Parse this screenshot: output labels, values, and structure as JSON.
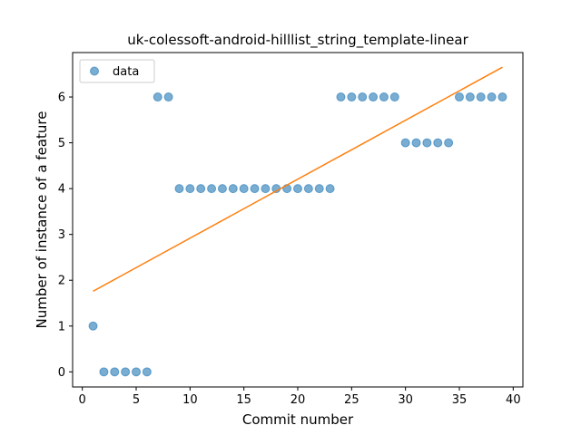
{
  "chart_data": {
    "type": "scatter",
    "title": "uk-colessoft-android-hilllist_string_template-linear",
    "xlabel": "Commit number",
    "ylabel": "Number of instance of a feature",
    "xlim": [
      -0.9,
      40.9
    ],
    "ylim": [
      -0.33,
      6.97
    ],
    "xticks": [
      0,
      5,
      10,
      15,
      20,
      25,
      30,
      35,
      40
    ],
    "yticks": [
      0,
      1,
      2,
      3,
      4,
      5,
      6
    ],
    "grid": false,
    "legend": {
      "placement": "top-left",
      "entries": [
        "data"
      ]
    },
    "series": [
      {
        "name": "data",
        "kind": "scatter",
        "color": "#1f77b4",
        "x": [
          1,
          2,
          3,
          4,
          5,
          6,
          7,
          8,
          9,
          10,
          11,
          12,
          13,
          14,
          15,
          16,
          17,
          18,
          19,
          20,
          21,
          22,
          23,
          24,
          25,
          26,
          27,
          28,
          29,
          30,
          31,
          32,
          33,
          34,
          35,
          36,
          37,
          38,
          39
        ],
        "y": [
          1,
          0,
          0,
          0,
          0,
          0,
          6,
          6,
          4,
          4,
          4,
          4,
          4,
          4,
          4,
          4,
          4,
          4,
          4,
          4,
          4,
          4,
          4,
          6,
          6,
          6,
          6,
          6,
          6,
          5,
          5,
          5,
          5,
          5,
          6,
          6,
          6,
          6,
          6
        ]
      },
      {
        "kind": "line",
        "color": "#ff7f0e",
        "x": [
          1,
          39
        ],
        "y": [
          1.76,
          6.65
        ]
      }
    ]
  }
}
